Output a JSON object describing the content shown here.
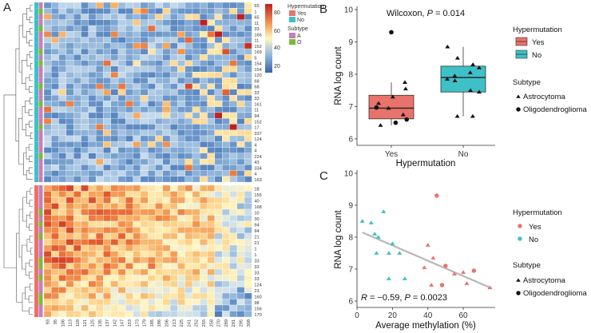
{
  "panels": {
    "a": "A",
    "b": "B",
    "c": "C"
  },
  "heatmap_legend": {
    "title_hyper": "Hypermutation",
    "yes": "Yes",
    "no": "No",
    "title_subtype": "Subtype",
    "a": "A",
    "o": "O",
    "scale_ticks": [
      "80",
      "60",
      "40",
      "20"
    ],
    "yes_color": "#e8736b",
    "no_color": "#3ec0c7",
    "a_color": "#c77db7",
    "o_color": "#7cba3a"
  },
  "heatmap": {
    "row_labels_top": [
      "65",
      "1",
      "65",
      "11",
      "33",
      "166",
      "11",
      "152",
      "169",
      "5",
      "154",
      "154",
      "120",
      "68",
      "68",
      "33",
      "33",
      "161",
      "11",
      "94",
      "152",
      "17",
      "337",
      "124",
      "4",
      "4",
      "224",
      "43",
      "334",
      "4",
      "163"
    ],
    "row_labels_bottom": [
      "18",
      "155",
      "40",
      "168",
      "10",
      "30",
      "94",
      "94",
      "21",
      "21",
      "1",
      "1",
      "33",
      "33",
      "33",
      "33",
      "124",
      "23",
      "160",
      "98",
      "156",
      "170"
    ],
    "col_labels": [
      "93",
      "95",
      "106",
      "113",
      "118",
      "121",
      "125",
      "135",
      "137",
      "142",
      "147",
      "153",
      "173",
      "179",
      "185",
      "186",
      "206",
      "213",
      "225",
      "241",
      "252",
      "255",
      "258",
      "270",
      "289",
      "291",
      "295",
      "308"
    ],
    "top_hyper": [
      0,
      0,
      0,
      0,
      0,
      0,
      0,
      0,
      0,
      0,
      0,
      0,
      0,
      0,
      0,
      0,
      0,
      0,
      0,
      0,
      0,
      0,
      0,
      0,
      0,
      0,
      0,
      0,
      0,
      0,
      0
    ],
    "top_subtype": [
      0,
      1,
      0,
      0,
      1,
      0,
      0,
      0,
      1,
      0,
      1,
      0,
      0,
      0,
      1,
      0,
      0,
      1,
      0,
      0,
      0,
      1,
      0,
      0,
      0,
      0,
      1,
      0,
      0,
      0,
      0
    ],
    "bottom_hyper": [
      1,
      1,
      1,
      1,
      1,
      1,
      1,
      1,
      1,
      1,
      1,
      1,
      1,
      1,
      1,
      1,
      1,
      1,
      1,
      1,
      1,
      1
    ],
    "bottom_subtype": [
      0,
      0,
      0,
      0,
      1,
      0,
      1,
      0,
      1,
      0,
      0,
      0,
      1,
      1,
      0,
      1,
      0,
      0,
      1,
      1,
      0,
      0
    ]
  },
  "chart_data": [
    {
      "type": "box",
      "title": "Wilcoxon, P = 0.014",
      "stat_prefix": "Wilcoxon, ",
      "stat_p": "P",
      "stat_suffix": " = 0.014",
      "xlabel": "Hypermutation",
      "ylabel": "RNA log count",
      "categories": [
        "Yes",
        "No"
      ],
      "ylim": [
        5.8,
        10.1
      ],
      "yticks": [
        6,
        7,
        8,
        9,
        10
      ],
      "colors": [
        "#e8736b",
        "#3ec0c7"
      ],
      "boxes": [
        {
          "name": "Yes",
          "min": 6.42,
          "q1": 6.62,
          "median": 6.95,
          "q3": 7.35,
          "max": 7.75
        },
        {
          "name": "No",
          "min": 6.7,
          "q1": 7.45,
          "median": 7.9,
          "q3": 8.25,
          "max": 8.85
        }
      ],
      "points": [
        {
          "g": 0,
          "y": 9.3,
          "s": "O"
        },
        {
          "g": 0,
          "y": 7.75,
          "s": "A"
        },
        {
          "g": 0,
          "y": 7.55,
          "s": "A"
        },
        {
          "g": 0,
          "y": 7.3,
          "s": "A"
        },
        {
          "g": 0,
          "y": 7.1,
          "s": "A"
        },
        {
          "g": 0,
          "y": 6.97,
          "s": "O"
        },
        {
          "g": 0,
          "y": 6.95,
          "s": "A"
        },
        {
          "g": 0,
          "y": 6.75,
          "s": "A"
        },
        {
          "g": 0,
          "y": 6.6,
          "s": "O"
        },
        {
          "g": 0,
          "y": 6.5,
          "s": "O"
        },
        {
          "g": 0,
          "y": 6.42,
          "s": "A"
        },
        {
          "g": 1,
          "y": 8.85,
          "s": "A"
        },
        {
          "g": 1,
          "y": 8.5,
          "s": "A"
        },
        {
          "g": 1,
          "y": 8.3,
          "s": "A"
        },
        {
          "g": 1,
          "y": 8.2,
          "s": "A"
        },
        {
          "g": 1,
          "y": 8.05,
          "s": "A"
        },
        {
          "g": 1,
          "y": 7.95,
          "s": "A"
        },
        {
          "g": 1,
          "y": 7.85,
          "s": "A"
        },
        {
          "g": 1,
          "y": 7.8,
          "s": "A"
        },
        {
          "g": 1,
          "y": 7.5,
          "s": "A"
        },
        {
          "g": 1,
          "y": 7.45,
          "s": "A"
        },
        {
          "g": 1,
          "y": 6.7,
          "s": "A"
        },
        {
          "g": 1,
          "y": 6.7,
          "s": "A"
        }
      ],
      "legend": {
        "hyper_title": "Hypermutation",
        "yes": "Yes",
        "no": "No",
        "subtype_title": "Subtype",
        "astro": "Astrocytoma",
        "oligo": "Oligodendroglioma"
      }
    },
    {
      "type": "scatter",
      "xlabel": "Average methylation (%)",
      "ylabel": "RNA log count",
      "xlim": [
        0,
        78
      ],
      "ylim": [
        5.8,
        10.1
      ],
      "xticks": [
        0,
        20,
        40,
        60
      ],
      "yticks": [
        6,
        7,
        8,
        9,
        10
      ],
      "stat_prefix": "R",
      "stat_mid": " = −0.59, ",
      "stat_p": "P",
      "stat_suffix": " = 0.0023",
      "fit": {
        "x0": 3,
        "y0": 8.15,
        "x1": 76,
        "y1": 6.4
      },
      "points": [
        {
          "x": 3,
          "y": 8.5,
          "h": "No",
          "s": "A"
        },
        {
          "x": 8,
          "y": 8.45,
          "h": "No",
          "s": "A"
        },
        {
          "x": 10,
          "y": 8.1,
          "h": "No",
          "s": "A"
        },
        {
          "x": 12,
          "y": 8.0,
          "h": "No",
          "s": "A"
        },
        {
          "x": 15,
          "y": 8.8,
          "h": "No",
          "s": "A"
        },
        {
          "x": 11,
          "y": 7.5,
          "h": "No",
          "s": "A"
        },
        {
          "x": 18,
          "y": 7.5,
          "h": "No",
          "s": "A"
        },
        {
          "x": 20,
          "y": 7.8,
          "h": "No",
          "s": "A"
        },
        {
          "x": 24,
          "y": 7.5,
          "h": "No",
          "s": "A"
        },
        {
          "x": 18,
          "y": 6.7,
          "h": "No",
          "s": "A"
        },
        {
          "x": 27,
          "y": 6.7,
          "h": "No",
          "s": "A"
        },
        {
          "x": 45,
          "y": 9.3,
          "h": "Yes",
          "s": "O"
        },
        {
          "x": 40,
          "y": 7.75,
          "h": "Yes",
          "s": "A"
        },
        {
          "x": 43,
          "y": 7.35,
          "h": "Yes",
          "s": "A"
        },
        {
          "x": 38,
          "y": 7.05,
          "h": "Yes",
          "s": "A"
        },
        {
          "x": 50,
          "y": 7.1,
          "h": "Yes",
          "s": "O"
        },
        {
          "x": 55,
          "y": 6.85,
          "h": "Yes",
          "s": "A"
        },
        {
          "x": 60,
          "y": 6.9,
          "h": "Yes",
          "s": "A"
        },
        {
          "x": 66,
          "y": 6.95,
          "h": "Yes",
          "s": "O"
        },
        {
          "x": 48,
          "y": 6.5,
          "h": "Yes",
          "s": "O"
        },
        {
          "x": 42,
          "y": 6.5,
          "h": "Yes",
          "s": "A"
        },
        {
          "x": 62,
          "y": 6.55,
          "h": "Yes",
          "s": "A"
        },
        {
          "x": 75,
          "y": 6.42,
          "h": "Yes",
          "s": "A"
        }
      ],
      "legend": {
        "hyper_title": "Hypermutation",
        "yes": "Yes",
        "no": "No",
        "subtype_title": "Subtype",
        "astro": "Astrocytoma",
        "oligo": "Oligodendroglioma"
      }
    }
  ]
}
